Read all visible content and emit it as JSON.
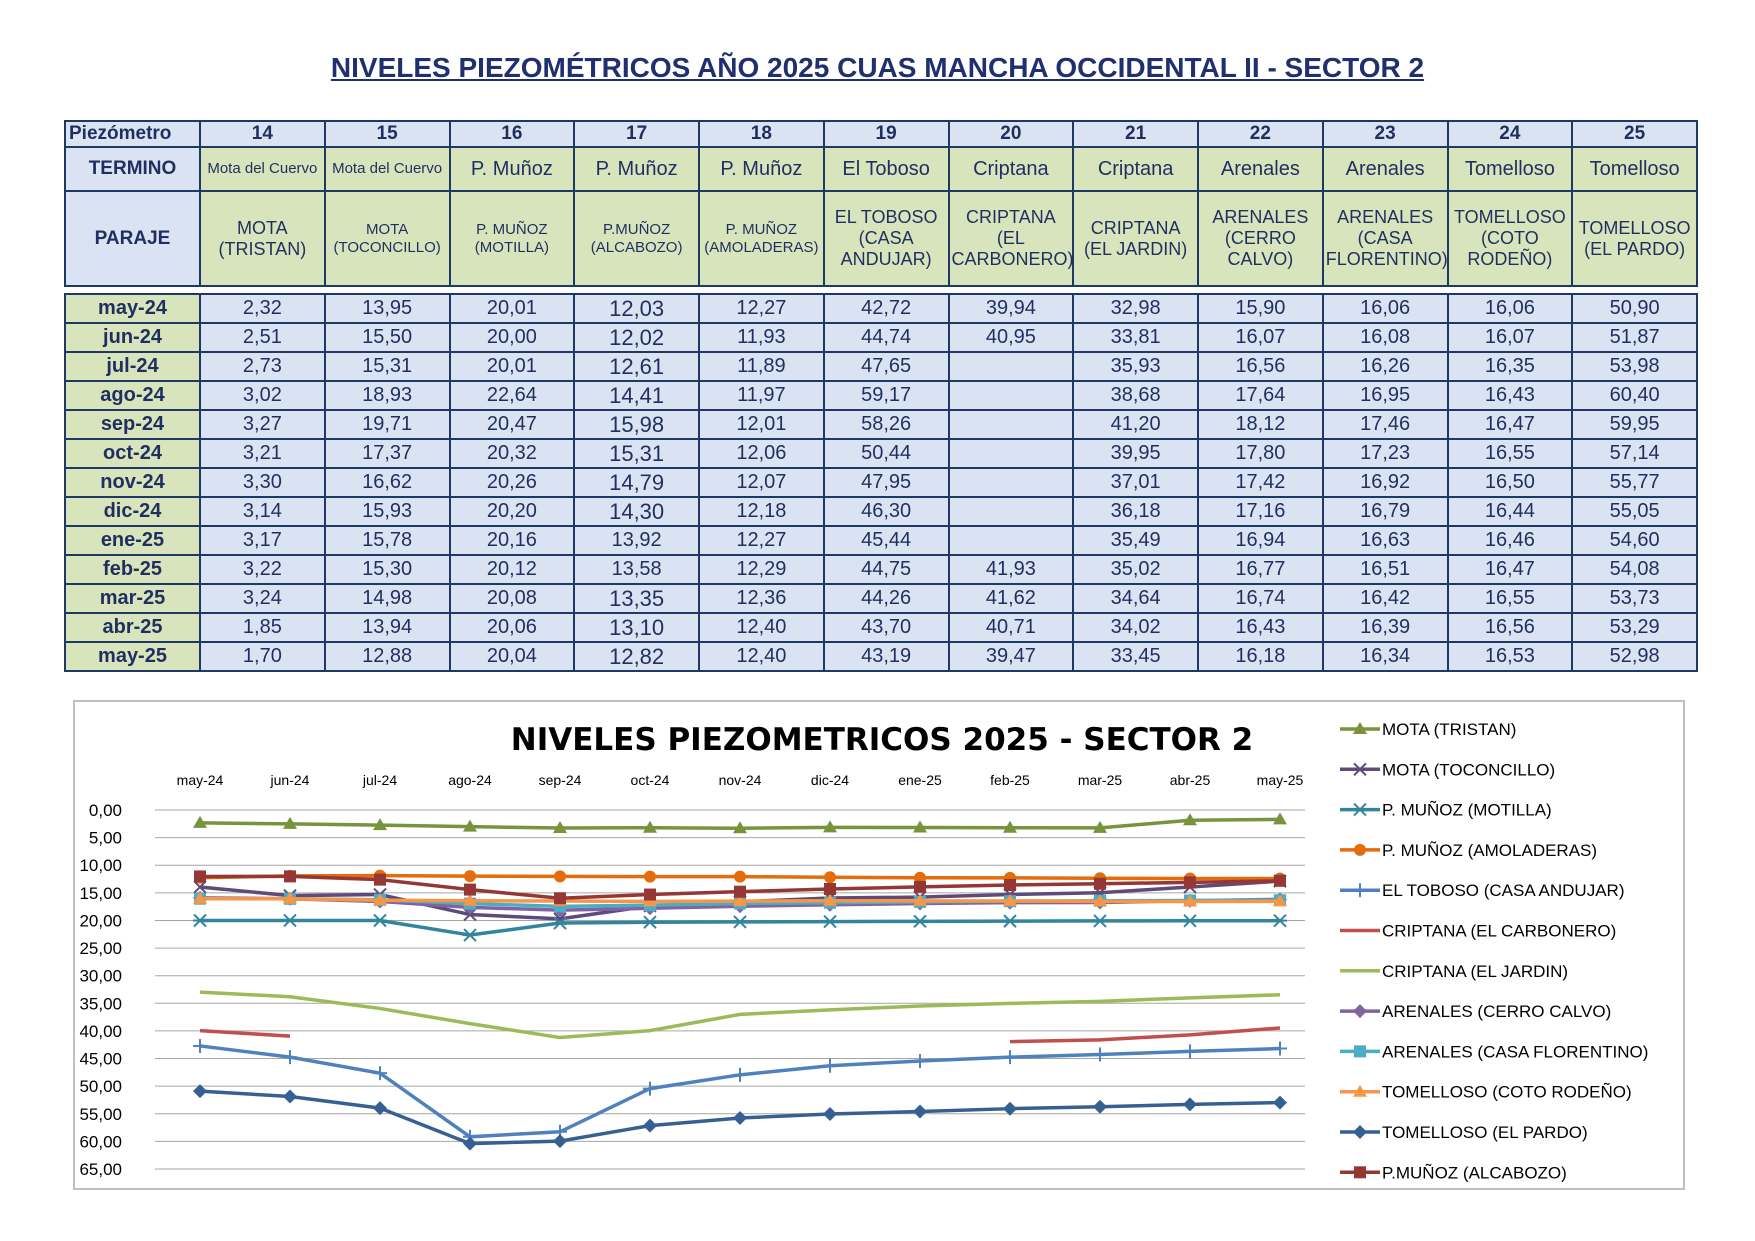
{
  "title": "NIVELES PIEZOMÉTRICOS AÑO 2025 CUAS MANCHA OCCIDENTAL II - SECTOR 2",
  "table": {
    "row_labels": {
      "piezometro": "Piezómetro",
      "termino": "TERMINO",
      "paraje": "PARAJE"
    },
    "columns": [
      {
        "id": "14",
        "termino": "Mota del Cuervo",
        "paraje": "MOTA (TRISTAN)"
      },
      {
        "id": "15",
        "termino": "Mota del Cuervo",
        "paraje": "MOTA (TOCONCILLO)"
      },
      {
        "id": "16",
        "termino": "P. Muñoz",
        "paraje": "P. MUÑOZ (MOTILLA)"
      },
      {
        "id": "17",
        "termino": "P. Muñoz",
        "paraje": "P.MUÑOZ (ALCABOZO)"
      },
      {
        "id": "18",
        "termino": "P. Muñoz",
        "paraje": "P. MUÑOZ (AMOLADERAS)"
      },
      {
        "id": "19",
        "termino": "El Toboso",
        "paraje": "EL TOBOSO (CASA ANDUJAR)"
      },
      {
        "id": "20",
        "termino": "Criptana",
        "paraje": "CRIPTANA (EL CARBONERO)"
      },
      {
        "id": "21",
        "termino": "Criptana",
        "paraje": "CRIPTANA (EL JARDIN)"
      },
      {
        "id": "22",
        "termino": "Arenales",
        "paraje": "ARENALES (CERRO CALVO)"
      },
      {
        "id": "23",
        "termino": "Arenales",
        "paraje": "ARENALES (CASA FLORENTINO)"
      },
      {
        "id": "24",
        "termino": "Tomelloso",
        "paraje": "TOMELLOSO (COTO RODEÑO)"
      },
      {
        "id": "25",
        "termino": "Tomelloso",
        "paraje": "TOMELLOSO (EL PARDO)"
      }
    ],
    "rows": [
      {
        "month": "may-24",
        "values": [
          "2,32",
          "13,95",
          "20,01",
          "12,03",
          "12,27",
          "42,72",
          "39,94",
          "32,98",
          "15,90",
          "16,06",
          "16,06",
          "50,90"
        ]
      },
      {
        "month": "jun-24",
        "values": [
          "2,51",
          "15,50",
          "20,00",
          "12,02",
          "11,93",
          "44,74",
          "40,95",
          "33,81",
          "16,07",
          "16,08",
          "16,07",
          "51,87"
        ]
      },
      {
        "month": "jul-24",
        "values": [
          "2,73",
          "15,31",
          "20,01",
          "12,61",
          "11,89",
          "47,65",
          "",
          "35,93",
          "16,56",
          "16,26",
          "16,35",
          "53,98"
        ]
      },
      {
        "month": "ago-24",
        "values": [
          "3,02",
          "18,93",
          "22,64",
          "14,41",
          "11,97",
          "59,17",
          "",
          "38,68",
          "17,64",
          "16,95",
          "16,43",
          "60,40"
        ]
      },
      {
        "month": "sep-24",
        "values": [
          "3,27",
          "19,71",
          "20,47",
          "15,98",
          "12,01",
          "58,26",
          "",
          "41,20",
          "18,12",
          "17,46",
          "16,47",
          "59,95"
        ]
      },
      {
        "month": "oct-24",
        "values": [
          "3,21",
          "17,37",
          "20,32",
          "15,31",
          "12,06",
          "50,44",
          "",
          "39,95",
          "17,80",
          "17,23",
          "16,55",
          "57,14"
        ]
      },
      {
        "month": "nov-24",
        "values": [
          "3,30",
          "16,62",
          "20,26",
          "14,79",
          "12,07",
          "47,95",
          "",
          "37,01",
          "17,42",
          "16,92",
          "16,50",
          "55,77"
        ]
      },
      {
        "month": "dic-24",
        "values": [
          "3,14",
          "15,93",
          "20,20",
          "14,30",
          "12,18",
          "46,30",
          "",
          "36,18",
          "17,16",
          "16,79",
          "16,44",
          "55,05"
        ]
      },
      {
        "month": "ene-25",
        "values": [
          "3,17",
          "15,78",
          "20,16",
          "13,92",
          "12,27",
          "45,44",
          "",
          "35,49",
          "16,94",
          "16,63",
          "16,46",
          "54,60"
        ]
      },
      {
        "month": "feb-25",
        "values": [
          "3,22",
          "15,30",
          "20,12",
          "13,58",
          "12,29",
          "44,75",
          "41,93",
          "35,02",
          "16,77",
          "16,51",
          "16,47",
          "54,08"
        ]
      },
      {
        "month": "mar-25",
        "values": [
          "3,24",
          "14,98",
          "20,08",
          "13,35",
          "12,36",
          "44,26",
          "41,62",
          "34,64",
          "16,74",
          "16,42",
          "16,55",
          "53,73"
        ]
      },
      {
        "month": "abr-25",
        "values": [
          "1,85",
          "13,94",
          "20,06",
          "13,10",
          "12,40",
          "43,70",
          "40,71",
          "34,02",
          "16,43",
          "16,39",
          "16,56",
          "53,29"
        ]
      },
      {
        "month": "may-25",
        "values": [
          "1,70",
          "12,88",
          "20,04",
          "12,82",
          "12,40",
          "43,19",
          "39,47",
          "33,45",
          "16,18",
          "16,34",
          "16,53",
          "52,98"
        ]
      }
    ]
  },
  "chart_data": {
    "type": "line",
    "title": "NIVELES PIEZOMETRICOS 2025 - SECTOR 2",
    "x": [
      "may-24",
      "jun-24",
      "jul-24",
      "ago-24",
      "sep-24",
      "oct-24",
      "nov-24",
      "dic-24",
      "ene-25",
      "feb-25",
      "mar-25",
      "abr-25",
      "may-25"
    ],
    "ylim": [
      0,
      65
    ],
    "y_reversed": true,
    "y_ticks": [
      "0,00",
      "5,00",
      "10,00",
      "15,00",
      "20,00",
      "25,00",
      "30,00",
      "35,00",
      "40,00",
      "45,00",
      "50,00",
      "55,00",
      "60,00",
      "65,00"
    ],
    "grid": true,
    "legend": "right",
    "xaxis": "top",
    "series": [
      {
        "name": "MOTA (TRISTAN)",
        "color": "#77933C",
        "marker": "triangle",
        "values": [
          2.32,
          2.51,
          2.73,
          3.02,
          3.27,
          3.21,
          3.3,
          3.14,
          3.17,
          3.22,
          3.24,
          1.85,
          1.7
        ]
      },
      {
        "name": "MOTA (TOCONCILLO)",
        "color": "#604A7B",
        "marker": "x",
        "values": [
          13.95,
          15.5,
          15.31,
          18.93,
          19.71,
          17.37,
          16.62,
          15.93,
          15.78,
          15.3,
          14.98,
          13.94,
          12.88
        ]
      },
      {
        "name": "P. MUÑOZ (MOTILLA)",
        "color": "#31859C",
        "marker": "star",
        "values": [
          20.01,
          20.0,
          20.01,
          22.64,
          20.47,
          20.32,
          20.26,
          20.2,
          20.16,
          20.12,
          20.08,
          20.06,
          20.04
        ]
      },
      {
        "name": "P. MUÑOZ (AMOLADERAS)",
        "color": "#E46C0A",
        "marker": "circle",
        "values": [
          12.27,
          11.93,
          11.89,
          11.97,
          12.01,
          12.06,
          12.07,
          12.18,
          12.27,
          12.29,
          12.36,
          12.4,
          12.4
        ]
      },
      {
        "name": "EL TOBOSO (CASA ANDUJAR)",
        "color": "#4F81BD",
        "marker": "plus",
        "values": [
          42.72,
          44.74,
          47.65,
          59.17,
          58.26,
          50.44,
          47.95,
          46.3,
          45.44,
          44.75,
          44.26,
          43.7,
          43.19
        ]
      },
      {
        "name": "CRIPTANA (EL CARBONERO)",
        "color": "#C0504D",
        "marker": "none",
        "values": [
          39.94,
          40.95,
          null,
          null,
          null,
          null,
          null,
          null,
          null,
          41.93,
          41.62,
          40.71,
          39.47
        ]
      },
      {
        "name": "CRIPTANA (EL JARDIN)",
        "color": "#9BBB59",
        "marker": "none",
        "values": [
          32.98,
          33.81,
          35.93,
          38.68,
          41.2,
          39.95,
          37.01,
          36.18,
          35.49,
          35.02,
          34.64,
          34.02,
          33.45
        ]
      },
      {
        "name": "ARENALES (CERRO CALVO)",
        "color": "#8064A2",
        "marker": "diamond",
        "values": [
          15.9,
          16.07,
          16.56,
          17.64,
          18.12,
          17.8,
          17.42,
          17.16,
          16.94,
          16.77,
          16.74,
          16.43,
          16.18
        ]
      },
      {
        "name": "ARENALES (CASA FLORENTINO)",
        "color": "#4BACC6",
        "marker": "square",
        "values": [
          16.06,
          16.08,
          16.26,
          16.95,
          17.46,
          17.23,
          16.92,
          16.79,
          16.63,
          16.51,
          16.42,
          16.39,
          16.34
        ]
      },
      {
        "name": "TOMELLOSO (COTO RODEÑO)",
        "color": "#F79646",
        "marker": "triangle",
        "values": [
          16.06,
          16.07,
          16.35,
          16.43,
          16.47,
          16.55,
          16.5,
          16.44,
          16.46,
          16.47,
          16.55,
          16.56,
          16.53
        ]
      },
      {
        "name": "TOMELLOSO (EL PARDO)",
        "color": "#376092",
        "marker": "diamond",
        "values": [
          50.9,
          51.87,
          53.98,
          60.4,
          59.95,
          57.14,
          55.77,
          55.05,
          54.6,
          54.08,
          53.73,
          53.29,
          52.98
        ]
      },
      {
        "name": "P.MUÑOZ (ALCABOZO)",
        "color": "#953735",
        "marker": "square",
        "values": [
          12.03,
          12.02,
          12.61,
          14.41,
          15.98,
          15.31,
          14.79,
          14.3,
          13.92,
          13.58,
          13.35,
          13.1,
          12.82
        ]
      }
    ]
  }
}
